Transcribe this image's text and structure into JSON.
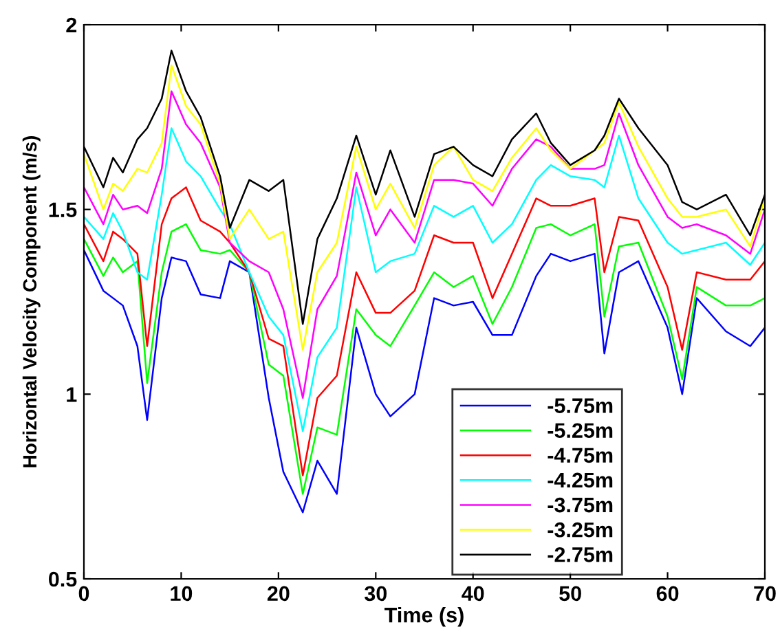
{
  "chart_data": {
    "type": "line",
    "xlabel": "Time (s)",
    "ylabel": "Horizontal Velocity Component (m/s)",
    "x": [
      0,
      2,
      3,
      4,
      5.5,
      6.5,
      8,
      9,
      10.5,
      12,
      14,
      15,
      17,
      19,
      20.5,
      22.5,
      24,
      26,
      28,
      30,
      31.5,
      34,
      36,
      38,
      40,
      42,
      44,
      46.5,
      48,
      50,
      52.5,
      53.5,
      55,
      57,
      60,
      61.5,
      63,
      66,
      68.5,
      70
    ],
    "xlim": [
      0,
      70
    ],
    "xticks": [
      0,
      10,
      20,
      30,
      40,
      50,
      60,
      70
    ],
    "ylim": [
      0.5,
      2
    ],
    "yticks": [
      0.5,
      1,
      1.5,
      2
    ],
    "grid": false,
    "legend": "bottom right",
    "marker": "none",
    "line_style": "solid",
    "series": [
      {
        "name": "-5.75m",
        "color": "#0000ff",
        "values": [
          1.39,
          1.28,
          1.26,
          1.24,
          1.13,
          0.93,
          1.26,
          1.37,
          1.36,
          1.27,
          1.26,
          1.36,
          1.33,
          0.99,
          0.79,
          0.68,
          0.82,
          0.73,
          1.18,
          1.0,
          0.94,
          1.0,
          1.26,
          1.24,
          1.25,
          1.16,
          1.16,
          1.32,
          1.38,
          1.36,
          1.38,
          1.11,
          1.33,
          1.36,
          1.18,
          1.0,
          1.26,
          1.17,
          1.13,
          1.18
        ]
      },
      {
        "name": "-5.25m",
        "color": "#00ff00",
        "values": [
          1.42,
          1.32,
          1.37,
          1.33,
          1.36,
          1.03,
          1.33,
          1.44,
          1.46,
          1.39,
          1.38,
          1.39,
          1.33,
          1.08,
          1.05,
          0.73,
          0.91,
          0.89,
          1.23,
          1.16,
          1.13,
          1.24,
          1.33,
          1.29,
          1.32,
          1.19,
          1.29,
          1.45,
          1.46,
          1.43,
          1.46,
          1.21,
          1.4,
          1.41,
          1.21,
          1.04,
          1.29,
          1.24,
          1.24,
          1.26
        ]
      },
      {
        "name": "-4.75m",
        "color": "#ff0000",
        "values": [
          1.46,
          1.36,
          1.44,
          1.42,
          1.38,
          1.13,
          1.46,
          1.53,
          1.56,
          1.47,
          1.44,
          1.41,
          1.33,
          1.15,
          1.13,
          0.78,
          0.99,
          1.05,
          1.33,
          1.22,
          1.22,
          1.28,
          1.43,
          1.41,
          1.41,
          1.26,
          1.38,
          1.53,
          1.51,
          1.51,
          1.53,
          1.33,
          1.48,
          1.47,
          1.29,
          1.12,
          1.33,
          1.31,
          1.31,
          1.36
        ]
      },
      {
        "name": "-4.25m",
        "color": "#00ffff",
        "values": [
          1.48,
          1.42,
          1.49,
          1.44,
          1.33,
          1.31,
          1.54,
          1.72,
          1.63,
          1.59,
          1.5,
          1.46,
          1.33,
          1.21,
          1.16,
          0.9,
          1.1,
          1.18,
          1.56,
          1.33,
          1.36,
          1.38,
          1.51,
          1.48,
          1.51,
          1.41,
          1.46,
          1.58,
          1.62,
          1.59,
          1.58,
          1.56,
          1.7,
          1.53,
          1.41,
          1.38,
          1.39,
          1.41,
          1.35,
          1.41
        ]
      },
      {
        "name": "-3.75m",
        "color": "#ff00ff",
        "values": [
          1.56,
          1.46,
          1.54,
          1.5,
          1.51,
          1.49,
          1.61,
          1.82,
          1.73,
          1.68,
          1.56,
          1.41,
          1.36,
          1.33,
          1.23,
          0.99,
          1.23,
          1.32,
          1.6,
          1.43,
          1.5,
          1.41,
          1.58,
          1.58,
          1.57,
          1.51,
          1.61,
          1.69,
          1.67,
          1.61,
          1.61,
          1.62,
          1.76,
          1.62,
          1.48,
          1.45,
          1.46,
          1.43,
          1.38,
          1.5
        ]
      },
      {
        "name": "-3.25m",
        "color": "#ffff00",
        "values": [
          1.65,
          1.5,
          1.57,
          1.55,
          1.61,
          1.6,
          1.68,
          1.89,
          1.78,
          1.73,
          1.57,
          1.42,
          1.5,
          1.42,
          1.44,
          1.12,
          1.33,
          1.41,
          1.67,
          1.5,
          1.57,
          1.45,
          1.62,
          1.67,
          1.58,
          1.55,
          1.64,
          1.72,
          1.66,
          1.61,
          1.66,
          1.68,
          1.79,
          1.67,
          1.53,
          1.48,
          1.48,
          1.5,
          1.4,
          1.53
        ]
      },
      {
        "name": "-2.75m",
        "color": "#000000",
        "values": [
          1.67,
          1.56,
          1.64,
          1.6,
          1.69,
          1.72,
          1.8,
          1.93,
          1.82,
          1.75,
          1.59,
          1.45,
          1.58,
          1.55,
          1.58,
          1.19,
          1.42,
          1.53,
          1.7,
          1.54,
          1.66,
          1.48,
          1.65,
          1.67,
          1.62,
          1.59,
          1.69,
          1.76,
          1.68,
          1.62,
          1.66,
          1.7,
          1.8,
          1.72,
          1.62,
          1.52,
          1.5,
          1.54,
          1.43,
          1.54
        ]
      }
    ]
  }
}
